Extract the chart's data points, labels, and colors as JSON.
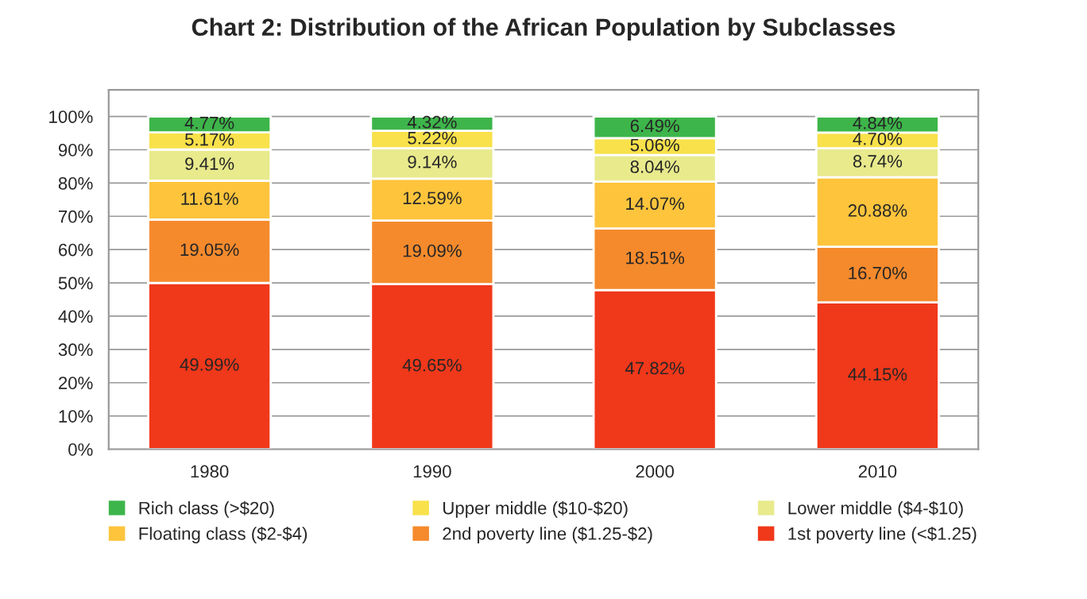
{
  "chart_data": {
    "type": "bar",
    "title": "Chart 2: Distribution of the African Population by Subclasses",
    "categories": [
      "1980",
      "1990",
      "2000",
      "2010"
    ],
    "stacked": true,
    "ylim": [
      0,
      108
    ],
    "yticks": [
      {
        "value": 0,
        "label": "0%"
      },
      {
        "value": 10,
        "label": "10%"
      },
      {
        "value": 20,
        "label": "20%"
      },
      {
        "value": 30,
        "label": "30%"
      },
      {
        "value": 40,
        "label": "40%"
      },
      {
        "value": 50,
        "label": "50%"
      },
      {
        "value": 60,
        "label": "60%"
      },
      {
        "value": 70,
        "label": "70%"
      },
      {
        "value": 80,
        "label": "80%"
      },
      {
        "value": 90,
        "label": "90%"
      },
      {
        "value": 100,
        "label": "100%"
      }
    ],
    "grid": "y",
    "legend": "bottom",
    "series": [
      {
        "name": "1st poverty line (<$1.25)",
        "color": "#f0381a",
        "values": [
          49.99,
          49.65,
          47.82,
          44.15
        ],
        "value_labels": [
          "49.99%",
          "49.65%",
          "47.82%",
          "44.15%"
        ]
      },
      {
        "name": "2nd poverty line ($1.25-$2)",
        "color": "#f58a2c",
        "values": [
          19.05,
          19.09,
          18.51,
          16.7
        ],
        "value_labels": [
          "19.05%",
          "19.09%",
          "18.51%",
          "16.70%"
        ]
      },
      {
        "name": "Floating class ($2-$4)",
        "color": "#fdc43c",
        "values": [
          11.61,
          12.59,
          14.07,
          20.88
        ],
        "value_labels": [
          "11.61%",
          "12.59%",
          "14.07%",
          "20.88%"
        ]
      },
      {
        "name": "Lower middle ($4-$10)",
        "color": "#e8ea8c",
        "values": [
          9.41,
          9.14,
          8.04,
          8.74
        ],
        "value_labels": [
          "9.41%",
          "9.14%",
          "8.04%",
          "8.74%"
        ]
      },
      {
        "name": "Upper middle ($10-$20)",
        "color": "#f8e14a",
        "values": [
          5.17,
          5.22,
          5.06,
          4.7
        ],
        "value_labels": [
          "5.17%",
          "5.22%",
          "5.06%",
          "4.70%"
        ]
      },
      {
        "name": "Rich class (>$20)",
        "color": "#3db54a",
        "values": [
          4.77,
          4.32,
          6.49,
          4.84
        ],
        "value_labels": [
          "4.77%",
          "4.32%",
          "6.49%",
          "4.84%"
        ]
      }
    ]
  }
}
